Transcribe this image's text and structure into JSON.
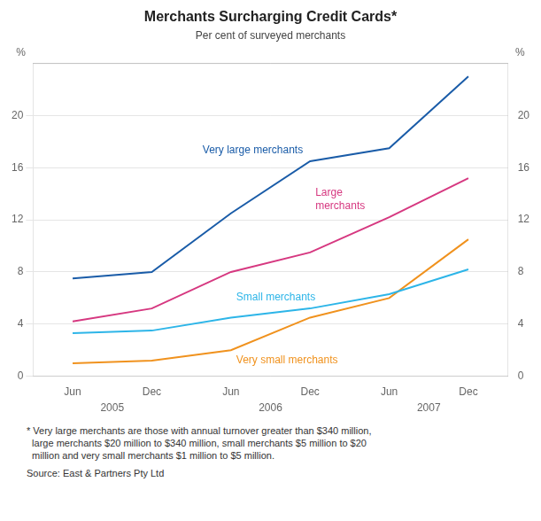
{
  "chart_data": {
    "type": "line",
    "title": "Merchants Surcharging Credit Cards*",
    "subtitle": "Per cent of surveyed merchants",
    "ylabel": "%",
    "y2label": "%",
    "categories": [
      "Jun",
      "Dec",
      "Jun",
      "Dec",
      "Jun",
      "Dec"
    ],
    "annotations": [
      {
        "text": "2005",
        "x": 0.5
      },
      {
        "text": "2006",
        "x": 2.5
      },
      {
        "text": "2007",
        "x": 4.5
      }
    ],
    "series": [
      {
        "name": "Very large merchants",
        "color": "#1a5ca8",
        "values": [
          7.5,
          8.0,
          12.5,
          16.5,
          17.5,
          23.0
        ]
      },
      {
        "name": "Large\nmerchants",
        "color": "#d63880",
        "values": [
          4.2,
          5.2,
          8.0,
          9.5,
          12.2,
          15.2
        ]
      },
      {
        "name": "Small merchants",
        "color": "#2db5e8",
        "values": [
          3.3,
          3.5,
          4.5,
          5.2,
          6.3,
          8.2
        ]
      },
      {
        "name": "Very small merchants",
        "color": "#f0921e",
        "values": [
          1.0,
          1.2,
          2.0,
          4.5,
          6.0,
          10.5
        ]
      }
    ],
    "ylim": [
      0,
      24
    ],
    "yticks": [
      0,
      4,
      8,
      12,
      16,
      20
    ],
    "y2lim": [
      0,
      24
    ],
    "y2ticks": [
      0,
      4,
      8,
      12,
      16,
      20
    ],
    "grid": true,
    "footnotes": [
      "* Very large merchants are those with annual turnover greater than $340 million,",
      "  large merchants $20 million to $340 million, small merchants $5 million to $20",
      "  million and very small merchants $1 million to $5 million."
    ],
    "source": "Source: East & Partners Pty Ltd"
  }
}
